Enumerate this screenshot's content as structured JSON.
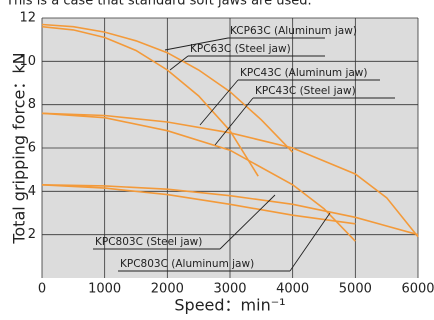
{
  "chart_data": {
    "type": "line",
    "caption": "This is a case that standard soft jaws are used.",
    "x_label": "Speed：min⁻¹",
    "y_label": "Total gripping force：kN",
    "xlim": [
      0,
      6000
    ],
    "ylim": [
      0,
      12
    ],
    "xticks": [
      0,
      1000,
      2000,
      3000,
      4000,
      5000,
      6000
    ],
    "yticks": [
      2,
      4,
      6,
      8,
      10,
      12
    ],
    "grid": true,
    "series": [
      {
        "name": "KCP63C (Aluminum jaw)",
        "color": "#f39a3a",
        "x": [
          0,
          500,
          1000,
          1500,
          2000,
          2500,
          3000,
          3500,
          4000
        ],
        "values": [
          11.7,
          11.6,
          11.35,
          10.95,
          10.4,
          9.6,
          8.6,
          7.3,
          5.8
        ]
      },
      {
        "name": "KPC63C (Steel jaw)",
        "color": "#f39a3a",
        "x": [
          0,
          500,
          1000,
          1500,
          2000,
          2500,
          3000,
          3450
        ],
        "values": [
          11.6,
          11.45,
          11.1,
          10.5,
          9.6,
          8.4,
          6.8,
          4.7
        ]
      },
      {
        "name": "KPC43C (Aluminum jaw)",
        "color": "#f39a3a",
        "x": [
          0,
          1000,
          2000,
          3000,
          4000,
          5000,
          5500,
          6000
        ],
        "values": [
          7.6,
          7.5,
          7.2,
          6.7,
          6.0,
          4.8,
          3.7,
          1.9
        ]
      },
      {
        "name": "KPC43C (Steel jaw)",
        "color": "#f39a3a",
        "x": [
          0,
          1000,
          2000,
          3000,
          4000,
          4500,
          5000
        ],
        "values": [
          7.6,
          7.4,
          6.8,
          5.9,
          4.3,
          3.2,
          1.7
        ]
      },
      {
        "name": "KPC803C (Steel jaw)",
        "color": "#f39a3a",
        "x": [
          0,
          1000,
          2000,
          3000,
          4000,
          5000
        ],
        "values": [
          4.3,
          4.15,
          3.85,
          3.4,
          2.9,
          2.5
        ]
      },
      {
        "name": "KPC803C (Aluminum jaw)",
        "color": "#f39a3a",
        "x": [
          0,
          1000,
          2000,
          3000,
          4000,
          5000,
          6000
        ],
        "values": [
          4.3,
          4.25,
          4.1,
          3.8,
          3.4,
          2.8,
          2.0
        ]
      }
    ]
  }
}
